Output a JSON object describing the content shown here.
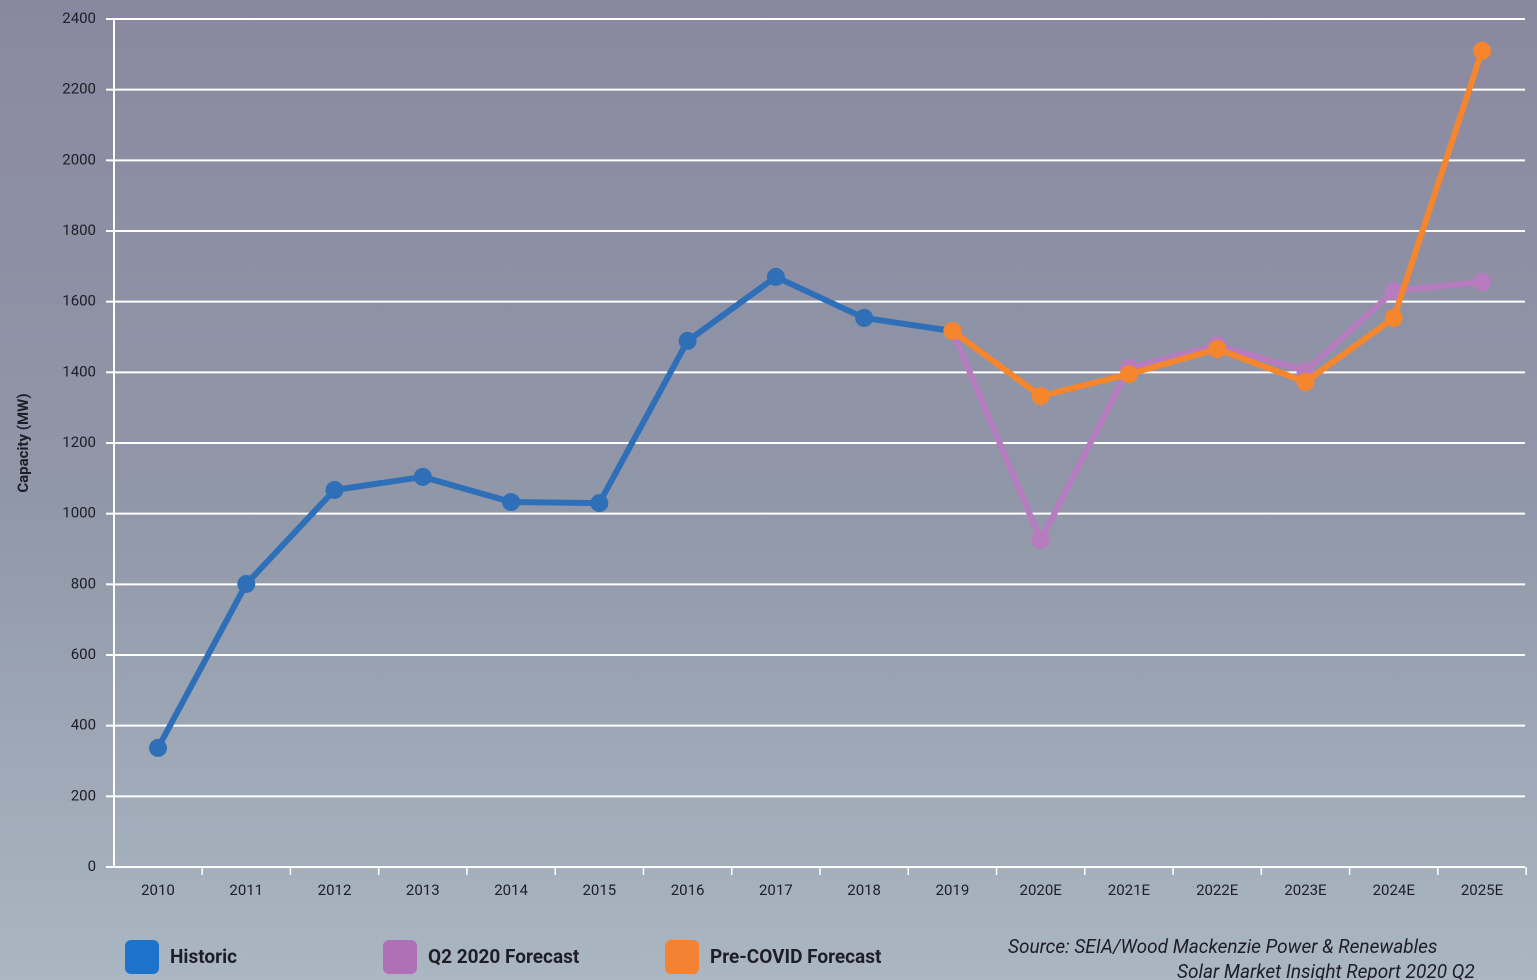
{
  "chart_data": {
    "type": "line",
    "y_label": "Capacity (MW)",
    "source": [
      "Source: SEIA/Wood Mackenzie Power & Renewables",
      "Solar Market Insight Report 2020 Q2"
    ],
    "categories": [
      "2010",
      "2011",
      "2012",
      "2013",
      "2014",
      "2015",
      "2016",
      "2017",
      "2018",
      "2019",
      "2020E",
      "2021E",
      "2022E",
      "2023E",
      "2024E",
      "2025E"
    ],
    "series": [
      {
        "name": "Historic",
        "color": "#2e6fb7",
        "legend_color": "#1b74c9",
        "values": [
          337,
          801,
          1067,
          1104,
          1033,
          1030,
          1489,
          1670,
          1554,
          1517,
          null,
          null,
          null,
          null,
          null,
          null
        ]
      },
      {
        "name": "Q2 2020 Forecast",
        "color": "#b77bbf",
        "legend_color": "#b070b8",
        "values": [
          null,
          null,
          null,
          null,
          null,
          null,
          null,
          null,
          null,
          1517,
          925,
          1412,
          1477,
          1404,
          1630,
          1656
        ]
      },
      {
        "name": "Pre-COVID Forecast",
        "color": "#f5862e",
        "legend_color": "#f58232",
        "values": [
          null,
          null,
          null,
          null,
          null,
          null,
          null,
          null,
          null,
          1517,
          1333,
          1395,
          1466,
          1373,
          1554,
          2310
        ]
      }
    ],
    "ylim": [
      0,
      2400
    ],
    "yticks": [
      0,
      200,
      400,
      600,
      800,
      1000,
      1200,
      1400,
      1600,
      1800,
      2000,
      2200,
      2400
    ],
    "grid": true
  }
}
